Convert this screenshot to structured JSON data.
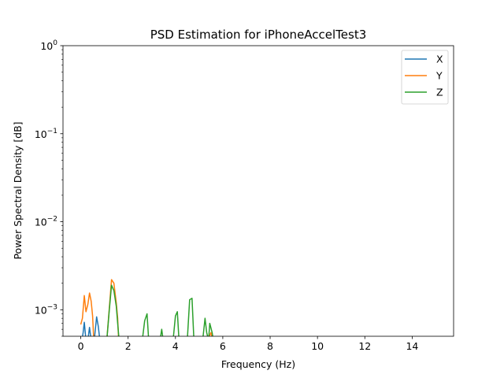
{
  "chart_data": {
    "type": "line",
    "title": "PSD Estimation for iPhoneAccelTest3",
    "xlabel": "Frequency (Hz)",
    "ylabel": "Power Spectral Density [dB]",
    "xlim": [
      -0.75,
      15.75
    ],
    "ylim": [
      0.0005,
      1
    ],
    "yscale": "log",
    "grid": false,
    "legend_position": "top-right",
    "x_ticks": [
      {
        "value": 0,
        "label": "0"
      },
      {
        "value": 2,
        "label": "2"
      },
      {
        "value": 4,
        "label": "4"
      },
      {
        "value": 6,
        "label": "6"
      },
      {
        "value": 8,
        "label": "8"
      },
      {
        "value": 10,
        "label": "10"
      },
      {
        "value": 12,
        "label": "12"
      },
      {
        "value": 14,
        "label": "14"
      }
    ],
    "y_ticks": [
      {
        "value": 0.001,
        "base": "10",
        "exp": "−3"
      },
      {
        "value": 0.01,
        "base": "10",
        "exp": "−2"
      },
      {
        "value": 0.1,
        "base": "10",
        "exp": "−1"
      },
      {
        "value": 1,
        "base": "10",
        "exp": "0"
      }
    ],
    "series": [
      {
        "name": "X",
        "color": "#1f77b4",
        "points": [
          [
            0.05,
            0.00045
          ],
          [
            0.1,
            0.00055
          ],
          [
            0.15,
            0.00072
          ],
          [
            0.22,
            0.00045
          ],
          [
            0.3,
            0.00045
          ],
          [
            0.37,
            0.00063
          ],
          [
            0.44,
            0.00045
          ],
          [
            0.55,
            0.0004
          ],
          [
            0.67,
            0.00083
          ],
          [
            0.74,
            0.00065
          ],
          [
            0.82,
            0.00042
          ]
        ]
      },
      {
        "name": "Y",
        "color": "#ff7f0e",
        "points": [
          [
            0.0,
            0.00068
          ],
          [
            0.07,
            0.0008
          ],
          [
            0.15,
            0.00145
          ],
          [
            0.22,
            0.00095
          ],
          [
            0.3,
            0.00115
          ],
          [
            0.37,
            0.00155
          ],
          [
            0.44,
            0.00125
          ],
          [
            0.5,
            0.00085
          ],
          [
            0.55,
            0.00045
          ],
          [
            1.1,
            0.00045
          ],
          [
            1.3,
            0.0022
          ],
          [
            1.4,
            0.002
          ],
          [
            1.5,
            0.0012
          ],
          [
            1.56,
            0.0008
          ],
          [
            1.6,
            0.00045
          ],
          [
            5.35,
            0.00045
          ],
          [
            5.5,
            0.00055
          ],
          [
            5.6,
            0.00042
          ]
        ]
      },
      {
        "name": "Z",
        "color": "#2ca02c",
        "points": [
          [
            1.1,
            0.00045
          ],
          [
            1.2,
            0.00095
          ],
          [
            1.3,
            0.0019
          ],
          [
            1.4,
            0.00165
          ],
          [
            1.5,
            0.0011
          ],
          [
            1.56,
            0.0007
          ],
          [
            1.62,
            0.00045
          ],
          [
            2.6,
            0.00045
          ],
          [
            2.7,
            0.00075
          ],
          [
            2.8,
            0.0009
          ],
          [
            2.87,
            0.00045
          ],
          [
            3.35,
            0.00045
          ],
          [
            3.42,
            0.0006
          ],
          [
            3.48,
            0.00045
          ],
          [
            3.9,
            0.00045
          ],
          [
            4.0,
            0.00085
          ],
          [
            4.08,
            0.00095
          ],
          [
            4.15,
            0.00045
          ],
          [
            4.5,
            0.00045
          ],
          [
            4.6,
            0.0013
          ],
          [
            4.7,
            0.00135
          ],
          [
            4.78,
            0.00045
          ],
          [
            5.15,
            0.00045
          ],
          [
            5.25,
            0.0008
          ],
          [
            5.32,
            0.00055
          ],
          [
            5.4,
            0.00045
          ],
          [
            5.45,
            0.0007
          ],
          [
            5.55,
            0.00055
          ],
          [
            5.62,
            0.00042
          ]
        ]
      }
    ]
  }
}
